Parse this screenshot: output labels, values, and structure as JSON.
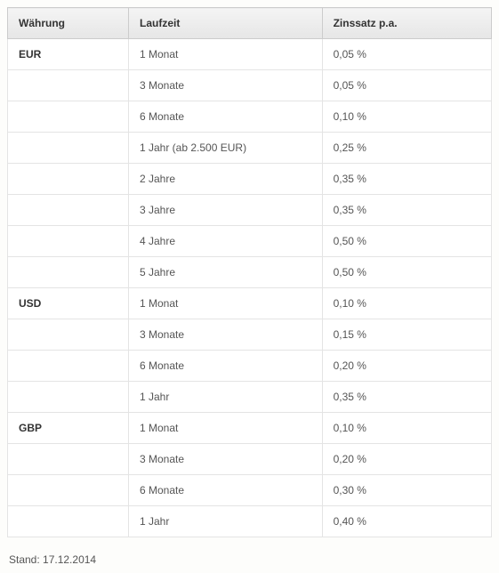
{
  "table": {
    "columns": [
      "Währung",
      "Laufzeit",
      "Zinssatz p.a."
    ],
    "rows": [
      [
        "EUR",
        "1 Monat",
        "0,05 %"
      ],
      [
        "",
        "3 Monate",
        "0,05 %"
      ],
      [
        "",
        "6 Monate",
        "0,10 %"
      ],
      [
        "",
        "1 Jahr (ab 2.500 EUR)",
        "0,25 %"
      ],
      [
        "",
        "2 Jahre",
        "0,35 %"
      ],
      [
        "",
        "3 Jahre",
        "0,35 %"
      ],
      [
        "",
        "4 Jahre",
        "0,50 %"
      ],
      [
        "",
        "5 Jahre",
        "0,50 %"
      ],
      [
        "USD",
        "1 Monat",
        "0,10 %"
      ],
      [
        "",
        "3 Monate",
        "0,15 %"
      ],
      [
        "",
        "6 Monate",
        "0,20 %"
      ],
      [
        "",
        "1 Jahr",
        "0,35 %"
      ],
      [
        "GBP",
        "1 Monat",
        "0,10 %"
      ],
      [
        "",
        "3 Monate",
        "0,20 %"
      ],
      [
        "",
        "6 Monate",
        "0,30 %"
      ],
      [
        "",
        "1 Jahr",
        "0,40 %"
      ]
    ],
    "header_bg_top": "#f4f4f4",
    "header_bg_bottom": "#e6e6e6",
    "border_color": "#e4e4e4",
    "header_border_color": "#cccccc",
    "text_color": "#555555",
    "bold_color": "#333333",
    "background_color": "#ffffff"
  },
  "footnote": "Stand: 17.12.2014"
}
